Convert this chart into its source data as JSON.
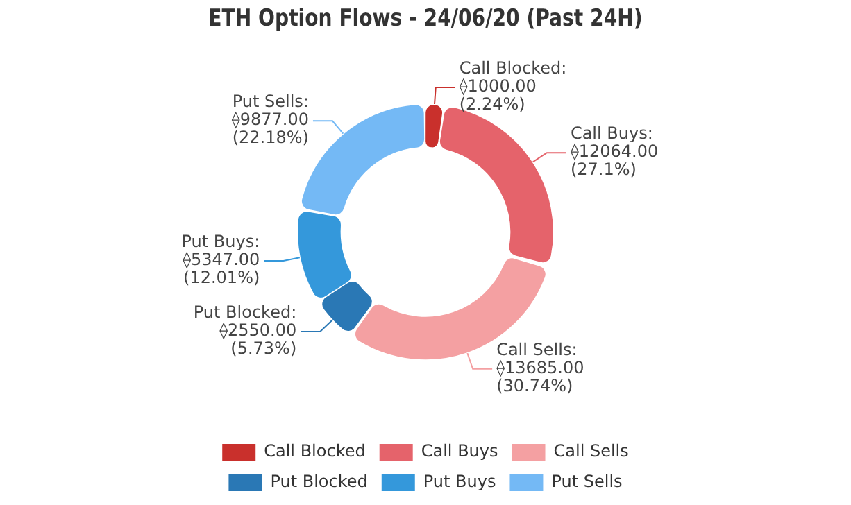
{
  "chart_data": {
    "type": "donut",
    "title": "ETH Option Flows - 24/06/20 (Past 24H)",
    "categories": [
      "Call Blocked",
      "Call Buys",
      "Call Sells",
      "Put Blocked",
      "Put Buys",
      "Put Sells"
    ],
    "values": [
      1000,
      12064,
      13685,
      2550,
      5347,
      9877
    ],
    "colors": [
      "#c9302c",
      "#e5636b",
      "#f4a0a2",
      "#2a78b5",
      "#3498db",
      "#74b9f5"
    ],
    "value_labels": [
      "Call Blocked:\n⟠1000.00\n(2.24%)",
      "Call Buys:\n⟠12064.00\n(27.1%)",
      "Call Sells:\n⟠13685.00\n(30.74%)",
      "Put Blocked:\n⟠2550.00\n(5.73%)",
      "Put Buys:\n⟠5347.00\n(12.01%)",
      "Put Sells:\n⟠9877.00\n(22.18%)"
    ],
    "legend": "bottom"
  }
}
